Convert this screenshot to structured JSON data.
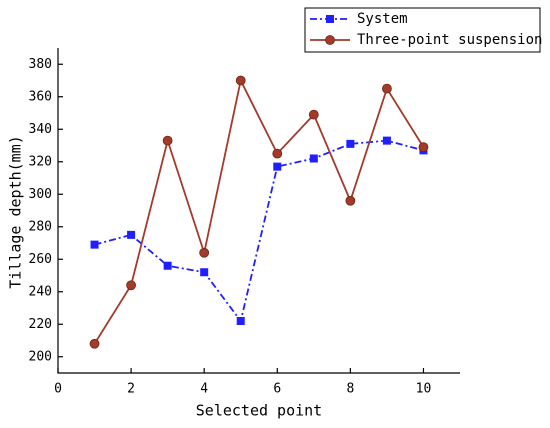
{
  "chart_data": {
    "type": "line",
    "x_label": "Selected point",
    "y_label": "Tillage depth(mm)",
    "x": [
      1,
      2,
      3,
      4,
      5,
      6,
      7,
      8,
      9,
      10
    ],
    "xlim": [
      0,
      11
    ],
    "xticks": [
      0,
      2,
      4,
      6,
      8,
      10
    ],
    "ylim": [
      190,
      390
    ],
    "yticks": [
      200,
      220,
      240,
      260,
      280,
      300,
      320,
      340,
      360,
      380
    ],
    "legend": "top-right",
    "series": [
      {
        "name": "System",
        "color": "#1f1fff",
        "line_style": "dash-dot",
        "marker": "square",
        "values": [
          269,
          275,
          256,
          252,
          222,
          317,
          322,
          331,
          333,
          327
        ]
      },
      {
        "name": "Three-point suspension",
        "color": "#a33a2c",
        "line_style": "solid",
        "marker": "circle",
        "values": [
          208,
          244,
          333,
          264,
          370,
          325,
          349,
          296,
          365,
          329
        ]
      }
    ]
  }
}
